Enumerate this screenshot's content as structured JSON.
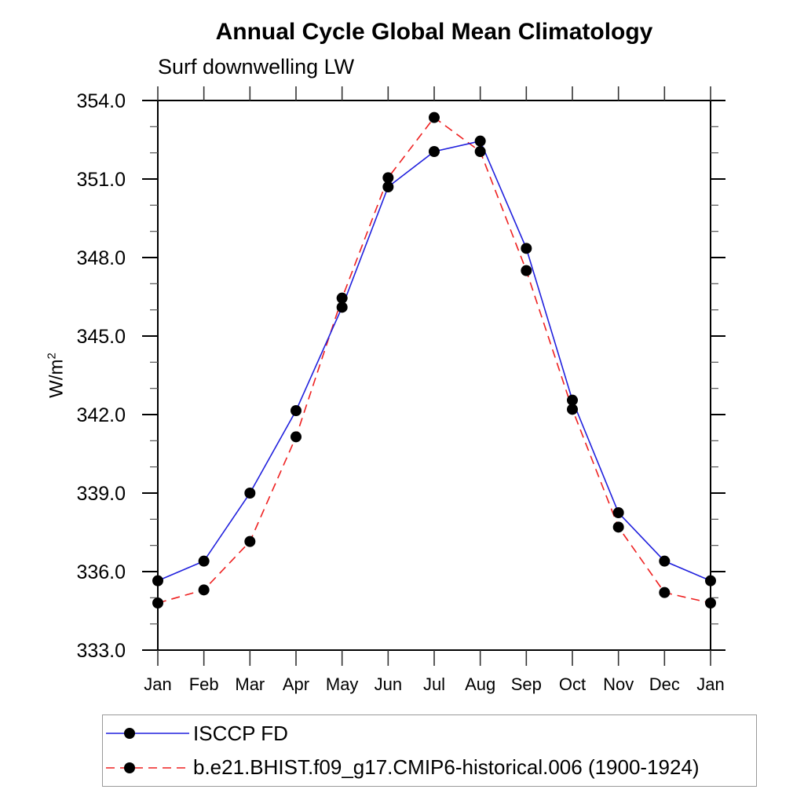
{
  "chart_data": {
    "type": "line",
    "title": "Annual Cycle Global Mean Climatology",
    "subtitle": "Surf downwelling LW",
    "ylabel_text": "W/m",
    "ylabel_sup": "2",
    "x_categories": [
      "Jan",
      "Feb",
      "Mar",
      "Apr",
      "May",
      "Jun",
      "Jul",
      "Aug",
      "Sep",
      "Oct",
      "Nov",
      "Dec",
      "Jan"
    ],
    "ylim": [
      333.0,
      354.0
    ],
    "y_major_step": 3.0,
    "y_minor_step": 1.0,
    "y_major_labels": [
      "333.0",
      "336.0",
      "339.0",
      "342.0",
      "345.0",
      "348.0",
      "351.0",
      "354.0"
    ],
    "grid": false,
    "legend_position": "bottom-left",
    "marker": {
      "shape": "circle",
      "color": "#000000",
      "radius": 7
    },
    "series": [
      {
        "name": "ISCCP FD",
        "color": "#2020dd",
        "line_style": "solid",
        "values": [
          335.65,
          336.4,
          339.0,
          342.15,
          346.1,
          350.7,
          352.05,
          352.45,
          348.35,
          342.55,
          338.25,
          336.4,
          335.65
        ]
      },
      {
        "name": "b.e21.BHIST.f09_g17.CMIP6-historical.006 (1900-1924)",
        "color": "#ee2020",
        "line_style": "dashed",
        "values": [
          334.8,
          335.3,
          337.15,
          341.15,
          346.45,
          351.05,
          353.35,
          352.05,
          347.5,
          342.2,
          337.7,
          335.2,
          334.8
        ]
      }
    ]
  }
}
